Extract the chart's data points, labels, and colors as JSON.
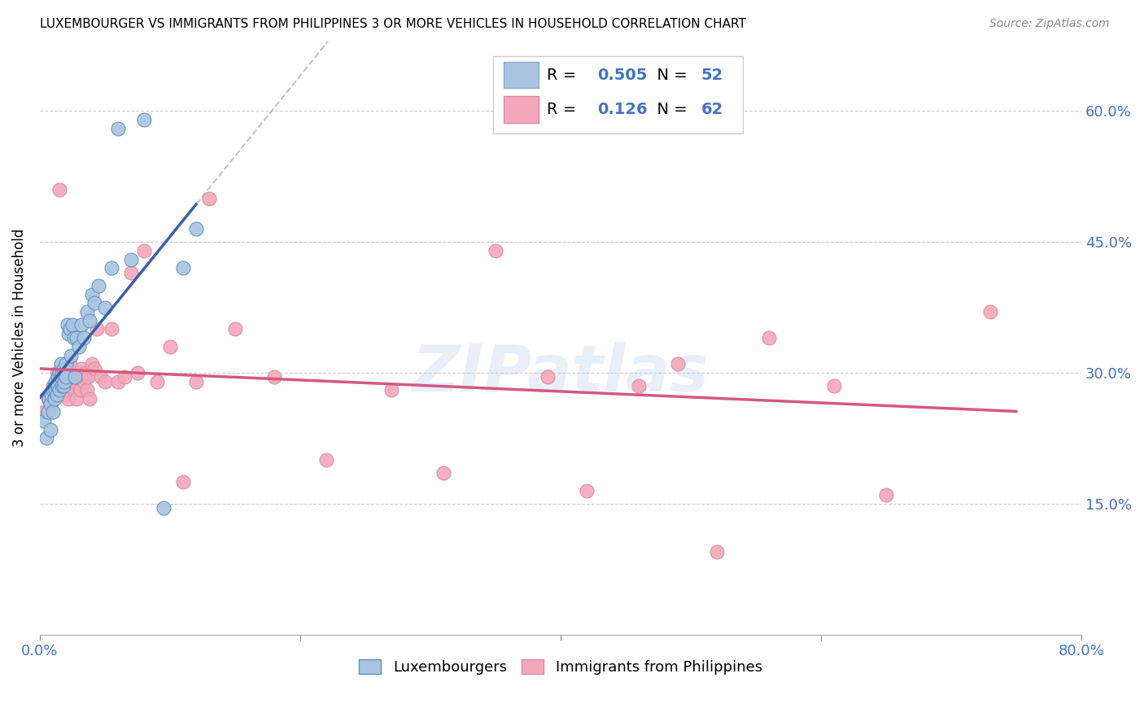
{
  "title": "LUXEMBOURGER VS IMMIGRANTS FROM PHILIPPINES 3 OR MORE VEHICLES IN HOUSEHOLD CORRELATION CHART",
  "source": "Source: ZipAtlas.com",
  "ylabel": "3 or more Vehicles in Household",
  "xlim": [
    0.0,
    0.8
  ],
  "ylim": [
    0.0,
    0.68
  ],
  "xticks": [
    0.0,
    0.2,
    0.4,
    0.6,
    0.8
  ],
  "xticklabels": [
    "0.0%",
    "",
    "",
    "",
    "80.0%"
  ],
  "ytick_positions": [
    0.0,
    0.15,
    0.3,
    0.45,
    0.6
  ],
  "ytick_labels_right": [
    "",
    "15.0%",
    "30.0%",
    "45.0%",
    "60.0%"
  ],
  "legend_R1": "0.505",
  "legend_N1": "52",
  "legend_R2": "0.126",
  "legend_N2": "62",
  "color_blue": "#a8c4e0",
  "color_pink": "#f4a7b9",
  "color_line_blue": "#3a5faa",
  "color_line_pink": "#d45880",
  "color_axis_blue": "#4472c4",
  "watermark": "ZIPatlas",
  "blue_points_x": [
    0.003,
    0.005,
    0.006,
    0.007,
    0.008,
    0.008,
    0.009,
    0.01,
    0.01,
    0.011,
    0.011,
    0.012,
    0.012,
    0.013,
    0.013,
    0.014,
    0.014,
    0.015,
    0.015,
    0.016,
    0.016,
    0.017,
    0.017,
    0.018,
    0.018,
    0.019,
    0.02,
    0.02,
    0.021,
    0.022,
    0.023,
    0.024,
    0.025,
    0.026,
    0.027,
    0.028,
    0.03,
    0.032,
    0.034,
    0.036,
    0.038,
    0.04,
    0.042,
    0.045,
    0.05,
    0.055,
    0.06,
    0.07,
    0.08,
    0.095,
    0.11,
    0.12
  ],
  "blue_points_y": [
    0.245,
    0.225,
    0.255,
    0.27,
    0.235,
    0.265,
    0.275,
    0.255,
    0.28,
    0.285,
    0.27,
    0.29,
    0.28,
    0.285,
    0.275,
    0.295,
    0.285,
    0.3,
    0.28,
    0.295,
    0.31,
    0.285,
    0.3,
    0.305,
    0.285,
    0.29,
    0.31,
    0.295,
    0.355,
    0.345,
    0.35,
    0.32,
    0.355,
    0.34,
    0.295,
    0.34,
    0.33,
    0.355,
    0.34,
    0.37,
    0.36,
    0.39,
    0.38,
    0.4,
    0.375,
    0.42,
    0.58,
    0.43,
    0.59,
    0.145,
    0.42,
    0.465
  ],
  "pink_points_x": [
    0.003,
    0.006,
    0.008,
    0.01,
    0.012,
    0.013,
    0.014,
    0.015,
    0.016,
    0.017,
    0.018,
    0.019,
    0.02,
    0.021,
    0.022,
    0.023,
    0.024,
    0.025,
    0.026,
    0.027,
    0.028,
    0.029,
    0.03,
    0.031,
    0.032,
    0.033,
    0.034,
    0.035,
    0.036,
    0.037,
    0.038,
    0.04,
    0.042,
    0.044,
    0.047,
    0.05,
    0.055,
    0.06,
    0.065,
    0.07,
    0.075,
    0.08,
    0.09,
    0.1,
    0.11,
    0.12,
    0.13,
    0.15,
    0.18,
    0.22,
    0.27,
    0.31,
    0.35,
    0.39,
    0.42,
    0.46,
    0.49,
    0.52,
    0.56,
    0.61,
    0.65,
    0.73
  ],
  "pink_points_y": [
    0.255,
    0.27,
    0.265,
    0.285,
    0.275,
    0.3,
    0.28,
    0.51,
    0.295,
    0.285,
    0.275,
    0.305,
    0.28,
    0.295,
    0.27,
    0.31,
    0.29,
    0.295,
    0.28,
    0.295,
    0.27,
    0.295,
    0.285,
    0.28,
    0.305,
    0.295,
    0.29,
    0.3,
    0.28,
    0.295,
    0.27,
    0.31,
    0.305,
    0.35,
    0.295,
    0.29,
    0.35,
    0.29,
    0.295,
    0.415,
    0.3,
    0.44,
    0.29,
    0.33,
    0.175,
    0.29,
    0.5,
    0.35,
    0.295,
    0.2,
    0.28,
    0.185,
    0.44,
    0.295,
    0.165,
    0.285,
    0.31,
    0.095,
    0.34,
    0.285,
    0.16,
    0.37
  ]
}
